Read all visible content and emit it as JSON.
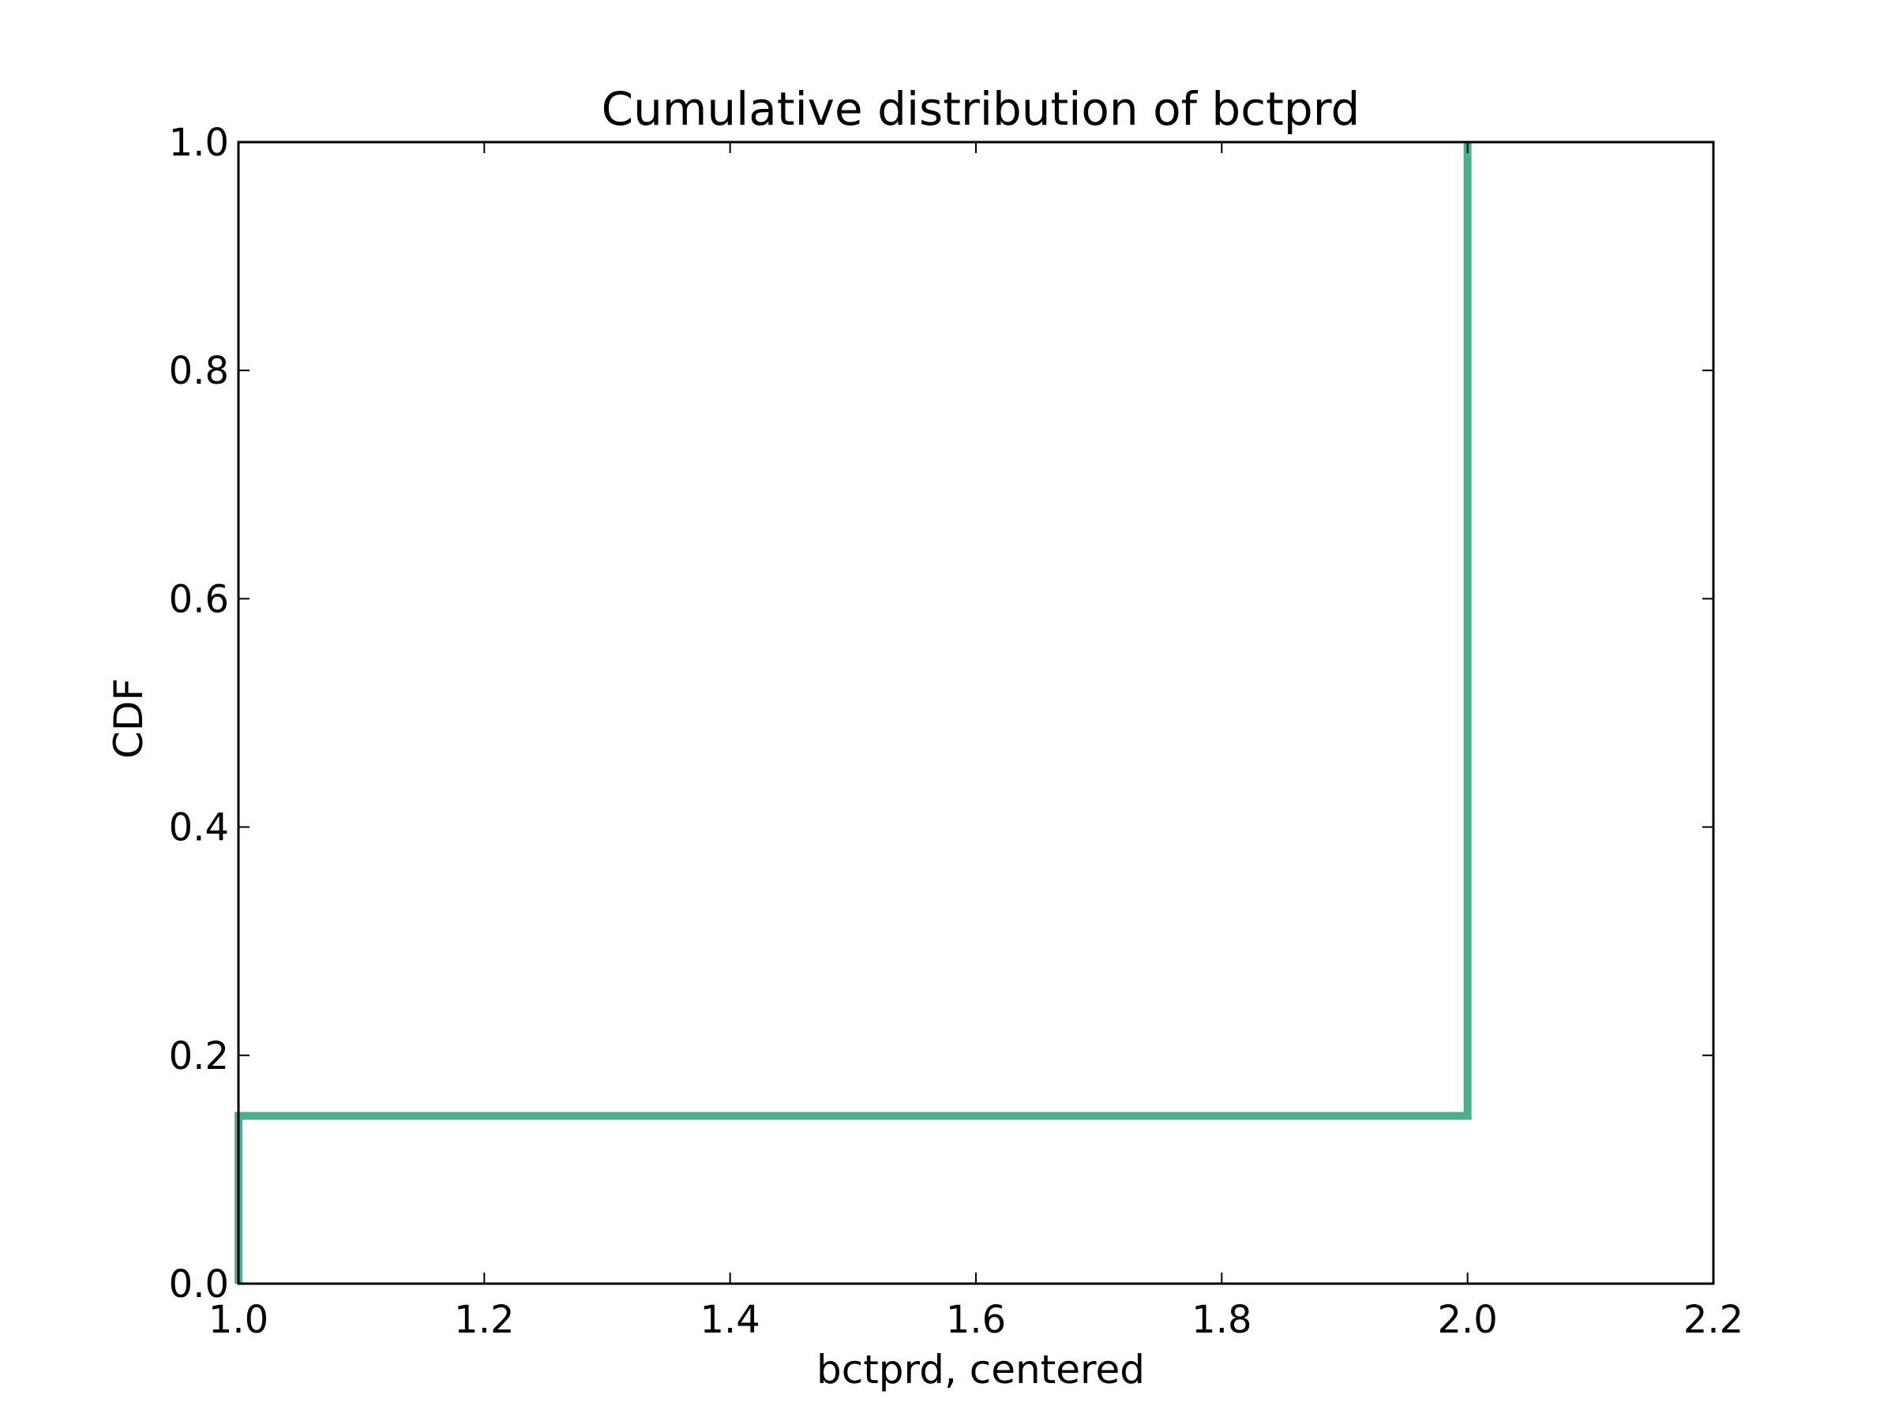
{
  "chart_data": {
    "type": "line",
    "title": "Cumulative distribution of bctprd",
    "xlabel": "bctprd, centered",
    "ylabel": "CDF",
    "xlim": [
      1.0,
      2.2
    ],
    "ylim": [
      0.0,
      1.0
    ],
    "xticks": [
      "1.0",
      "1.2",
      "1.4",
      "1.6",
      "1.8",
      "2.0",
      "2.2"
    ],
    "yticks": [
      "0.0",
      "0.2",
      "0.4",
      "0.6",
      "0.8",
      "1.0"
    ],
    "grid": false,
    "series": [
      {
        "color": "#4daf8f",
        "step": true,
        "x": [
          1.0,
          1.0,
          2.0,
          2.0
        ],
        "y": [
          0.0,
          0.147,
          0.147,
          1.0
        ]
      }
    ]
  }
}
